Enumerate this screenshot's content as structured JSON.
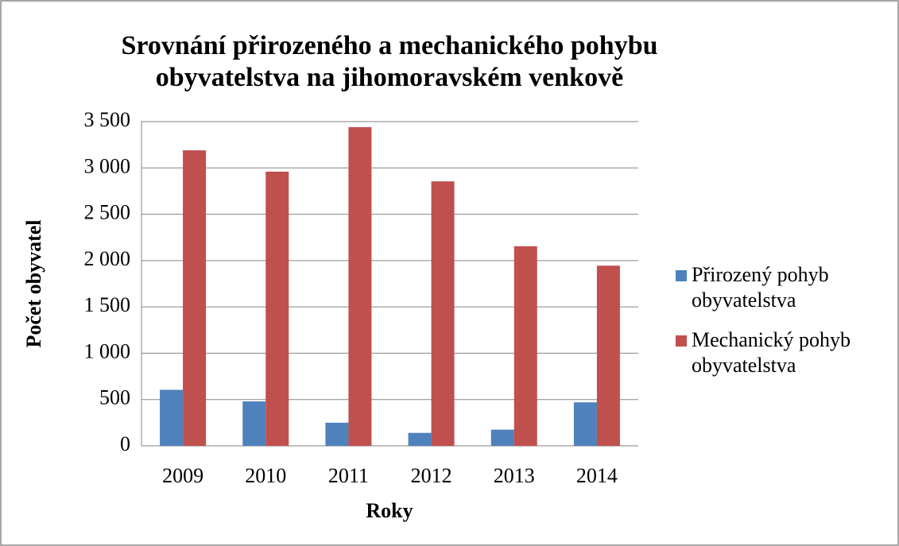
{
  "chart_data": {
    "type": "bar",
    "title": "Srovnání přirozeného a mechanického pohybu obyvatelstva na jihomoravském venkově",
    "xlabel": "Roky",
    "ylabel": "Počet obyvatel",
    "categories": [
      "2009",
      "2010",
      "2011",
      "2012",
      "2013",
      "2014"
    ],
    "series": [
      {
        "name": "Přirozený pohyb obyvatelstva",
        "color": "#4f81bd",
        "values": [
          605,
          480,
          250,
          140,
          175,
          470
        ]
      },
      {
        "name": "Mechanický pohyb obyvatelstva",
        "color": "#c0504d",
        "values": [
          3190,
          2960,
          3440,
          2855,
          2155,
          1945
        ]
      }
    ],
    "ylim": [
      0,
      3500
    ],
    "yticks": [
      0,
      500,
      {
        "value": 1000,
        "label": "1 000"
      },
      {
        "value": 1500,
        "label": "1 500"
      },
      {
        "value": 2000,
        "label": "2 000"
      },
      {
        "value": 2500,
        "label": "2 500"
      },
      {
        "value": 3000,
        "label": "3 000"
      },
      {
        "value": 3500,
        "label": "3 500"
      }
    ],
    "grid": true,
    "legend": "right"
  }
}
